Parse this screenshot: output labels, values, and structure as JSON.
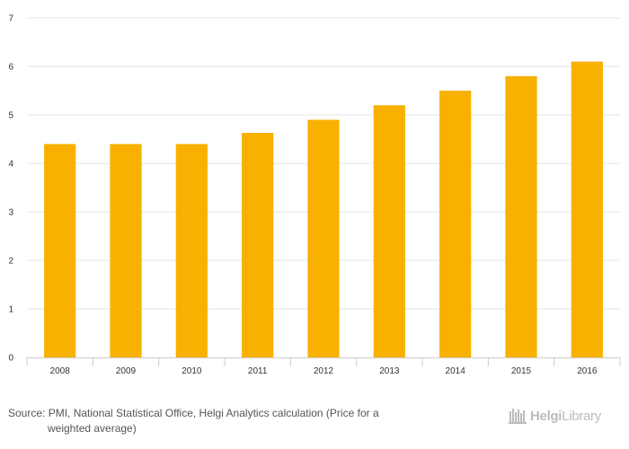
{
  "chart_data": {
    "type": "bar",
    "categories": [
      "2008",
      "2009",
      "2010",
      "2011",
      "2012",
      "2013",
      "2014",
      "2015",
      "2016"
    ],
    "values": [
      4.4,
      4.4,
      4.4,
      4.63,
      4.9,
      5.2,
      5.5,
      5.8,
      6.1
    ],
    "ylim": [
      0,
      7
    ],
    "yticks": [
      "0",
      "1",
      "2",
      "3",
      "4",
      "5",
      "6",
      "7"
    ],
    "grid": true,
    "bar_color": "#f8b100",
    "grid_color": "#e6e6e6",
    "axis_color": "#cccccc"
  },
  "source": {
    "line1": "Source: PMI, National Statistical Office, Helgi Analytics calculation (Price for a",
    "line2": "weighted average)"
  },
  "logo": {
    "part1": "Helgi",
    "part2": "Library"
  }
}
